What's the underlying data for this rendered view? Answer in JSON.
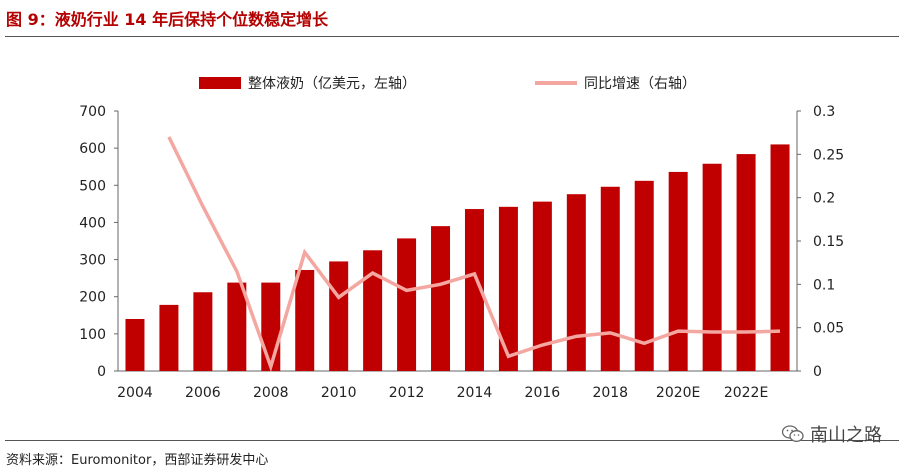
{
  "header": {
    "title": "图 9：液奶行业 14 年后保持个位数稳定增长"
  },
  "footer": {
    "source": "资料来源：Euromonitor，西部证券研发中心"
  },
  "watermark": {
    "text": "南山之路",
    "icon": "wechat-icon"
  },
  "colors": {
    "bar": "#c00000",
    "line": "#f4a6a0",
    "title": "#b40000"
  },
  "chart_data": {
    "type": "bar",
    "x": [
      "2004",
      "2005",
      "2006",
      "2007",
      "2008",
      "2009",
      "2010",
      "2011",
      "2012",
      "2013",
      "2014",
      "2015",
      "2016",
      "2017",
      "2018",
      "2019",
      "2020E",
      "2021E",
      "2022E",
      "2023E"
    ],
    "x_tick_labels": [
      "2004",
      "2006",
      "2008",
      "2010",
      "2012",
      "2014",
      "2016",
      "2018",
      "2020E",
      "2022E"
    ],
    "series": [
      {
        "name": "整体液奶（亿美元，左轴）",
        "type": "bar",
        "axis": "left",
        "values": [
          140,
          178,
          212,
          238,
          238,
          272,
          295,
          325,
          357,
          390,
          436,
          442,
          456,
          476,
          496,
          512,
          536,
          558,
          584,
          610
        ]
      },
      {
        "name": "同比增速（右轴）",
        "type": "line",
        "axis": "right",
        "values": [
          null,
          0.27,
          0.19,
          0.115,
          0.005,
          0.137,
          0.085,
          0.113,
          0.093,
          0.1,
          0.112,
          0.017,
          0.03,
          0.04,
          0.044,
          0.032,
          0.046,
          0.045,
          0.045,
          0.046
        ]
      }
    ],
    "y_left": {
      "min": 0,
      "max": 700,
      "ticks": [
        "0",
        "100",
        "200",
        "300",
        "400",
        "500",
        "600",
        "700"
      ]
    },
    "y_right": {
      "min": 0,
      "max": 0.3,
      "ticks": [
        "0",
        "0.05",
        "0.1",
        "0.15",
        "0.2",
        "0.25",
        "0.3"
      ]
    },
    "legend_position": "top-center",
    "grid": false
  }
}
